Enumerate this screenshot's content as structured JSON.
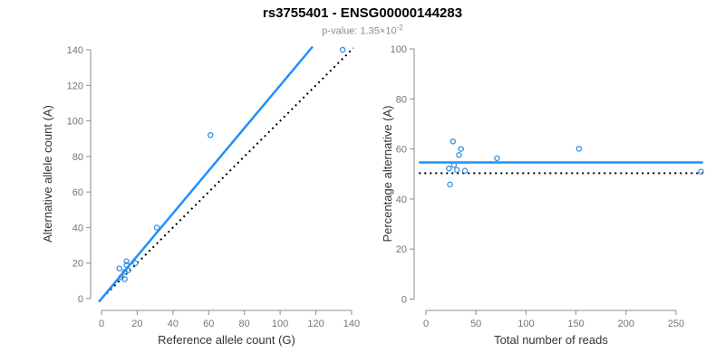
{
  "header": {
    "title": "rs3755401 - ENSG00000144283",
    "pvalue_prefix": "p-value: 1.35×10",
    "pvalue_exponent": "-2"
  },
  "colors": {
    "accent_blue": "#1e90ff",
    "point_blue": "#3390dd",
    "dotted_black": "#000000",
    "axis_gray": "#8c8c8c",
    "tick_label_gray": "#757575",
    "axis_title_gray": "#333333",
    "subtitle_gray": "#8c8c8c"
  },
  "chart_data": [
    {
      "type": "scatter",
      "panel": "left",
      "xlabel": "Reference allele count (G)",
      "ylabel": "Alternative allele count (A)",
      "xlim": [
        0,
        140
      ],
      "ylim": [
        0,
        140
      ],
      "xticks": [
        0,
        20,
        40,
        60,
        80,
        100,
        120,
        140
      ],
      "yticks": [
        0,
        20,
        40,
        60,
        80,
        100,
        120,
        140
      ],
      "grid": false,
      "legend": null,
      "points": [
        [
          10,
          17
        ],
        [
          14,
          21
        ],
        [
          14,
          19
        ],
        [
          11,
          12
        ],
        [
          13,
          15
        ],
        [
          15,
          16
        ],
        [
          19,
          20
        ],
        [
          13,
          11
        ],
        [
          31,
          40
        ],
        [
          61,
          92
        ],
        [
          135,
          140
        ]
      ],
      "lines": [
        {
          "name": "identity-line",
          "style": "dotted",
          "color": "black",
          "x1": -1.5,
          "y1": -1.5,
          "x2": 141,
          "y2": 141
        },
        {
          "name": "fit-line",
          "style": "solid",
          "color": "blue",
          "x1": -1.5,
          "y1": -1.8,
          "x2": 118.2,
          "y2": 141.8
        }
      ]
    },
    {
      "type": "scatter",
      "panel": "right",
      "xlabel": "Total number of reads",
      "ylabel": "Percentage alternative (A)",
      "xlim": [
        0,
        250
      ],
      "ylim": [
        0,
        100
      ],
      "xticks": [
        0,
        50,
        100,
        150,
        200,
        250
      ],
      "yticks": [
        0,
        20,
        40,
        60,
        80,
        100
      ],
      "grid": false,
      "legend": null,
      "points": [
        [
          27,
          63.0
        ],
        [
          35,
          60.0
        ],
        [
          33,
          57.6
        ],
        [
          23,
          52.2
        ],
        [
          28,
          53.6
        ],
        [
          31,
          51.6
        ],
        [
          39,
          51.3
        ],
        [
          24,
          45.8
        ],
        [
          71,
          56.3
        ],
        [
          153,
          60.1
        ],
        [
          275,
          50.9
        ]
      ],
      "lines": [
        {
          "name": "reference-line",
          "style": "dotted",
          "color": "black",
          "x1": -7,
          "y1": 50.3,
          "x2": 277,
          "y2": 50.3
        },
        {
          "name": "mean-line",
          "style": "solid",
          "color": "blue",
          "x1": -7,
          "y1": 54.6,
          "x2": 277,
          "y2": 54.6
        }
      ]
    }
  ]
}
